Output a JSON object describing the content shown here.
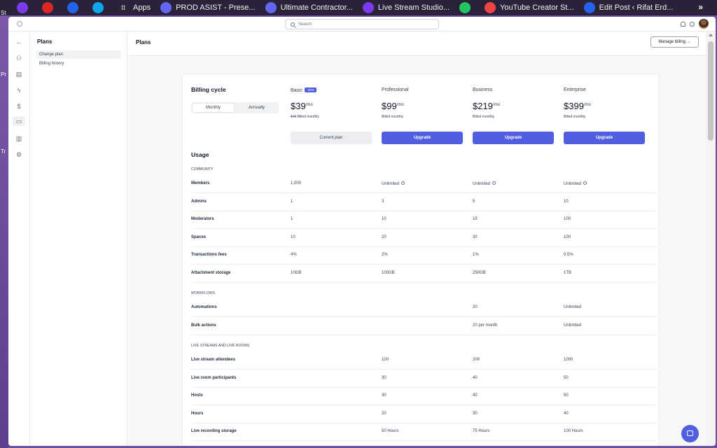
{
  "bookmarks": [
    {
      "label": "",
      "icon": "firefox-icon",
      "color": "#7c3aed"
    },
    {
      "label": "",
      "icon": "pdf-icon",
      "color": "#dc2626"
    },
    {
      "label": "",
      "icon": "wordpress-icon",
      "color": "#2563eb"
    },
    {
      "label": "",
      "icon": "app-icon",
      "color": "#0ea5e9"
    },
    {
      "label": "Apps",
      "icon": "apps-grid-icon",
      "color": "#2a2238"
    },
    {
      "label": "PROD ASIST - Prese...",
      "icon": "prod-icon",
      "color": "#6366f1"
    },
    {
      "label": "Ultimate Contractor...",
      "icon": "contractor-icon",
      "color": "#6366f1"
    },
    {
      "label": "Live Stream Studio...",
      "icon": "studio-icon",
      "color": "#7c3aed"
    },
    {
      "label": "",
      "icon": "leaf-icon",
      "color": "#22c55e"
    },
    {
      "label": "YouTube Creator St...",
      "icon": "youtube-icon",
      "color": "#ef4444"
    },
    {
      "label": "Edit Post ‹ Rifat Erd...",
      "icon": "wordpress-icon",
      "color": "#2563eb"
    }
  ],
  "bookmarks_more": "»",
  "desktop_fragments": [
    "St",
    "Pr",
    "Tr"
  ],
  "topbar": {
    "search_placeholder": "Search"
  },
  "subnav": {
    "title": "Plans",
    "items": [
      "Change plan",
      "Billing history"
    ]
  },
  "main": {
    "title": "Plans",
    "manage_billing": "Manage billing →"
  },
  "billing": {
    "title": "Billing cycle",
    "monthly": "Monthly",
    "annually": "Annually"
  },
  "plans": [
    {
      "name": "Basic",
      "badge": "-20%",
      "price": "$39",
      "per": "/mo",
      "old_price": "$49",
      "billed": "Billed monthly",
      "button": "Current plan",
      "current": true
    },
    {
      "name": "Professional",
      "badge": "",
      "price": "$99",
      "per": "/mo",
      "old_price": "",
      "billed": "Billed monthly",
      "button": "Upgrade",
      "current": false
    },
    {
      "name": "Business",
      "badge": "",
      "price": "$219",
      "per": "/mo",
      "old_price": "",
      "billed": "Billed monthly",
      "button": "Upgrade",
      "current": false
    },
    {
      "name": "Enterprise",
      "badge": "",
      "price": "$399",
      "per": "/mo",
      "old_price": "",
      "billed": "Billed monthly",
      "button": "Upgrade",
      "current": false
    }
  ],
  "usage": {
    "title": "Usage",
    "sections": [
      {
        "name": "COMMUNITY",
        "rows": [
          {
            "label": "Members",
            "values": [
              "1,000",
              "Unlimited",
              "Unlimited",
              "Unlimited"
            ],
            "info": [
              false,
              true,
              true,
              true
            ]
          },
          {
            "label": "Admins",
            "values": [
              "1",
              "3",
              "5",
              "10"
            ]
          },
          {
            "label": "Moderators",
            "values": [
              "1",
              "10",
              "15",
              "100"
            ]
          },
          {
            "label": "Spaces",
            "values": [
              "10",
              "20",
              "30",
              "100"
            ]
          },
          {
            "label": "Transactions fees",
            "values": [
              "4%",
              "2%",
              "1%",
              "0.5%"
            ]
          },
          {
            "label": "Attachment storage",
            "values": [
              "10GB",
              "100GB",
              "250GB",
              "1TB"
            ]
          }
        ]
      },
      {
        "name": "WORKFLOWS",
        "rows": [
          {
            "label": "Automations",
            "values": [
              "",
              "",
              "20",
              "Unlimited"
            ]
          },
          {
            "label": "Bulk actions",
            "values": [
              "",
              "",
              "20 per month",
              "Unlimited"
            ]
          }
        ]
      },
      {
        "name": "LIVE STREAMS AND LIVE ROOMS",
        "rows": [
          {
            "label": "Live stream attendees",
            "values": [
              "",
              "100",
              "200",
              "1000"
            ]
          },
          {
            "label": "Live room participants",
            "values": [
              "",
              "30",
              "40",
              "50"
            ]
          },
          {
            "label": "Hosts",
            "values": [
              "",
              "30",
              "40",
              "50"
            ]
          },
          {
            "label": "Hours",
            "values": [
              "",
              "20",
              "30",
              "40"
            ]
          },
          {
            "label": "Live recording storage",
            "values": [
              "",
              "50 Hours",
              "75 Hours",
              "100 Hours"
            ]
          }
        ]
      }
    ]
  },
  "colors": {
    "accent": "#4f5fe0",
    "bookmarks_bg": "#2a2238",
    "desktop": "#6b4f9e"
  }
}
